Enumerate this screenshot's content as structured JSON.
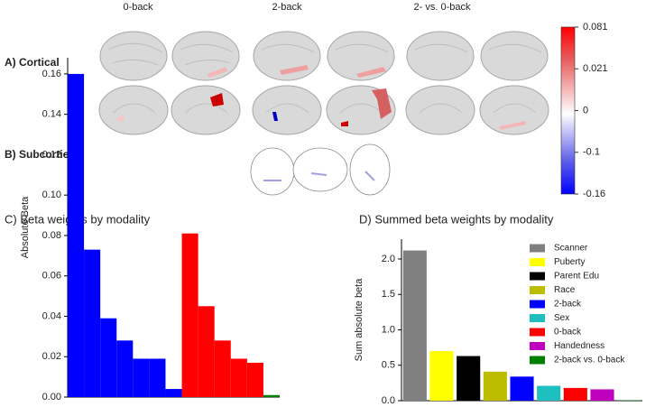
{
  "brain_panel": {
    "columns": [
      "0-back",
      "2-back",
      "2- vs. 0-back"
    ],
    "rows": [
      "A) Cortical",
      "B) Subcortical"
    ],
    "colorbar": {
      "lim": [
        -0.16,
        0.081
      ],
      "ticks": [
        0.081,
        0.021,
        0,
        -0.1,
        -0.16
      ]
    }
  },
  "chart_data": [
    {
      "type": "bar",
      "title": "C) Beta weights by modality",
      "ylabel": "Absolute Beta",
      "categories": [
        null,
        null,
        null,
        null,
        null,
        null,
        null,
        null,
        null,
        null,
        null,
        null,
        null
      ],
      "values": [
        0.16,
        0.073,
        0.039,
        0.028,
        0.019,
        0.019,
        0.004,
        0.081,
        0.045,
        0.028,
        0.019,
        0.017,
        0.001
      ],
      "colors": [
        "#0000ff",
        "#0000ff",
        "#0000ff",
        "#0000ff",
        "#0000ff",
        "#0000ff",
        "#0000ff",
        "#ff0000",
        "#ff0000",
        "#ff0000",
        "#ff0000",
        "#ff0000",
        "#008000"
      ],
      "ylim": [
        0,
        0.168
      ],
      "yticks": [
        {
          "value": 0,
          "label": "0.00"
        },
        0.02,
        0.04,
        0.06,
        0.08,
        {
          "value": 0.1,
          "label": "0.10"
        },
        0.12,
        0.14,
        0.16
      ]
    },
    {
      "type": "bar",
      "title": "D) Summed beta weights by modality",
      "ylabel": "Sum absolute beta",
      "categories": [
        "Scanner",
        "Puberty",
        "Parent Edu",
        "Race",
        "2-back",
        "Sex",
        "0-back",
        "Handedness",
        "2-back vs. 0-back"
      ],
      "values": [
        2.12,
        0.7,
        0.63,
        0.41,
        0.34,
        0.21,
        0.18,
        0.16,
        0.005
      ],
      "colors": [
        "#808080",
        "#ffff00",
        "#000000",
        "#bcbc00",
        "#0000ff",
        "#1fbfbf",
        "#ff0000",
        "#bf00bf",
        "#008000"
      ],
      "ylim": [
        0,
        2.28
      ],
      "yticks": [
        {
          "value": 0,
          "label": "0.0"
        },
        0.5,
        {
          "value": 1,
          "label": "1.0"
        },
        1.5,
        {
          "value": 2,
          "label": "2.0"
        }
      ],
      "legend": "upper right"
    }
  ]
}
